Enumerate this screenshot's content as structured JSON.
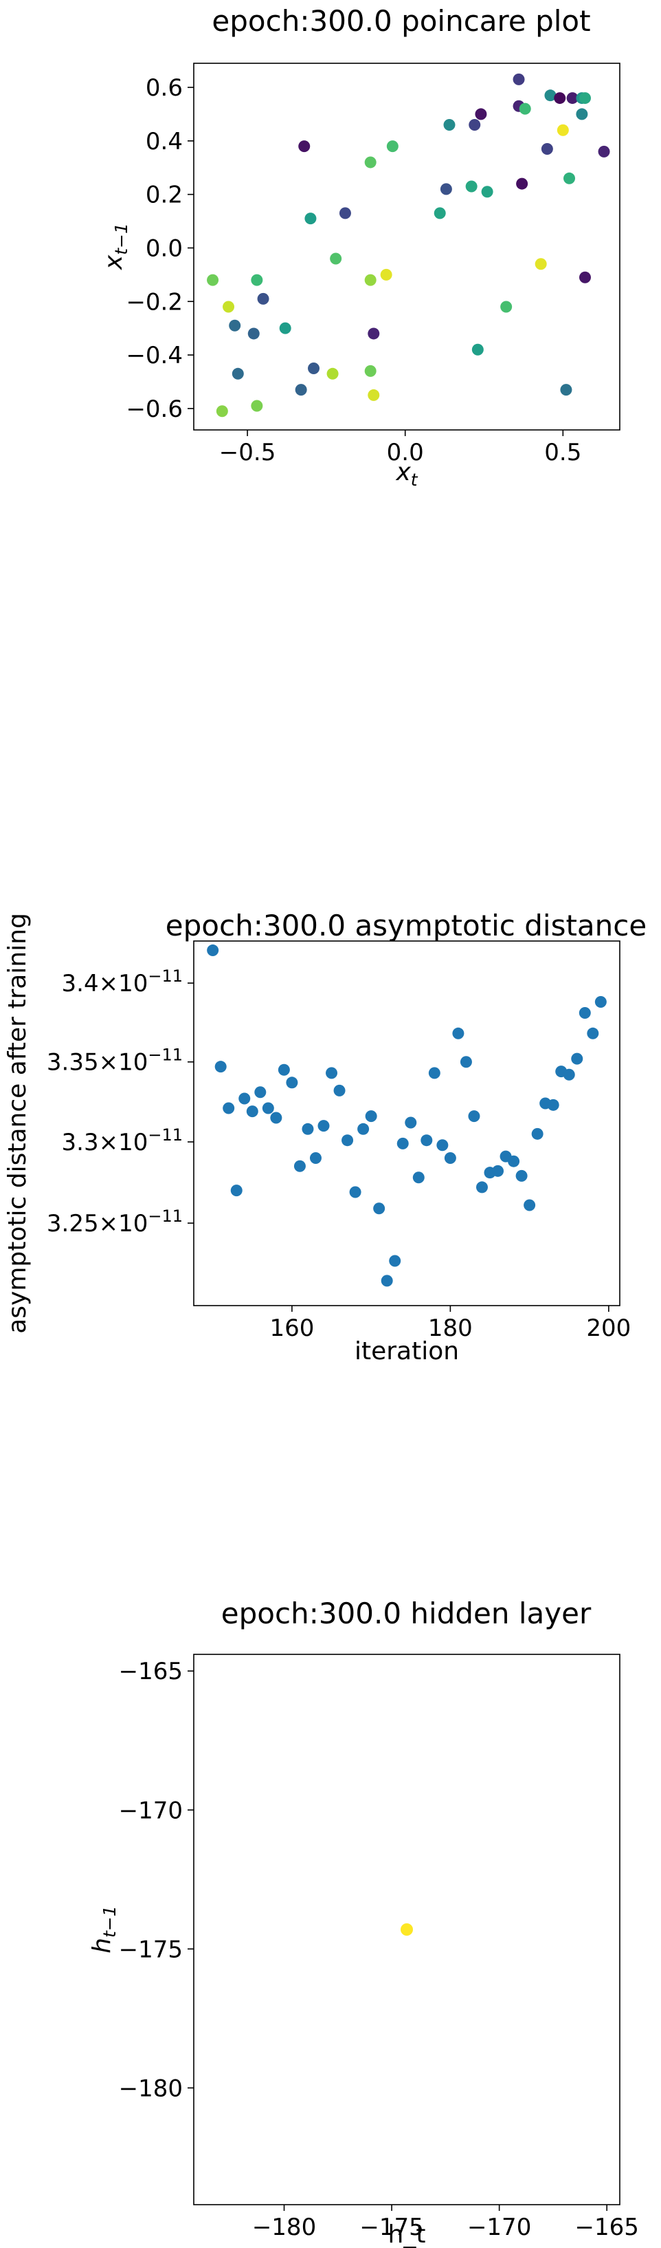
{
  "chart_data": [
    {
      "type": "scatter",
      "title": "epoch:300.0 poincare plot",
      "xlabel": "x_t",
      "ylabel": "x_{t-1}",
      "xlim": [
        -0.67,
        0.68
      ],
      "ylim": [
        -0.68,
        0.69
      ],
      "xticks": [
        -0.5,
        0.0,
        0.5
      ],
      "xtick_labels": [
        "−0.5",
        "0.0",
        "0.5"
      ],
      "yticks": [
        -0.6,
        -0.4,
        -0.2,
        0.0,
        0.2,
        0.4,
        0.6
      ],
      "ytick_labels": [
        "−0.6",
        "−0.4",
        "−0.2",
        "0.0",
        "0.2",
        "0.4",
        "0.6"
      ],
      "grid": false,
      "colormap": "viridis",
      "points": [
        {
          "x": -0.61,
          "y": -0.12,
          "c": 0.78
        },
        {
          "x": -0.58,
          "y": -0.61,
          "c": 0.82
        },
        {
          "x": -0.56,
          "y": -0.22,
          "c": 0.92
        },
        {
          "x": -0.54,
          "y": -0.29,
          "c": 0.35
        },
        {
          "x": -0.53,
          "y": -0.47,
          "c": 0.35
        },
        {
          "x": -0.48,
          "y": -0.32,
          "c": 0.32
        },
        {
          "x": -0.47,
          "y": -0.12,
          "c": 0.68
        },
        {
          "x": -0.47,
          "y": -0.59,
          "c": 0.8
        },
        {
          "x": -0.45,
          "y": -0.19,
          "c": 0.25
        },
        {
          "x": -0.38,
          "y": -0.3,
          "c": 0.55
        },
        {
          "x": -0.33,
          "y": -0.53,
          "c": 0.32
        },
        {
          "x": -0.32,
          "y": 0.38,
          "c": 0.05
        },
        {
          "x": -0.3,
          "y": 0.11,
          "c": 0.55
        },
        {
          "x": -0.29,
          "y": -0.45,
          "c": 0.28
        },
        {
          "x": -0.23,
          "y": -0.47,
          "c": 0.88
        },
        {
          "x": -0.22,
          "y": -0.04,
          "c": 0.72
        },
        {
          "x": -0.19,
          "y": 0.13,
          "c": 0.22
        },
        {
          "x": -0.11,
          "y": 0.32,
          "c": 0.74
        },
        {
          "x": -0.11,
          "y": -0.12,
          "c": 0.84
        },
        {
          "x": -0.11,
          "y": -0.46,
          "c": 0.78
        },
        {
          "x": -0.1,
          "y": -0.32,
          "c": 0.1
        },
        {
          "x": -0.1,
          "y": -0.55,
          "c": 0.94
        },
        {
          "x": -0.06,
          "y": -0.1,
          "c": 0.96
        },
        {
          "x": -0.04,
          "y": 0.38,
          "c": 0.7
        },
        {
          "x": 0.11,
          "y": 0.13,
          "c": 0.58
        },
        {
          "x": 0.13,
          "y": 0.22,
          "c": 0.25
        },
        {
          "x": 0.14,
          "y": 0.46,
          "c": 0.48
        },
        {
          "x": 0.21,
          "y": 0.23,
          "c": 0.6
        },
        {
          "x": 0.22,
          "y": 0.46,
          "c": 0.2
        },
        {
          "x": 0.23,
          "y": -0.38,
          "c": 0.56
        },
        {
          "x": 0.24,
          "y": 0.5,
          "c": 0.05
        },
        {
          "x": 0.26,
          "y": 0.21,
          "c": 0.58
        },
        {
          "x": 0.32,
          "y": -0.22,
          "c": 0.7
        },
        {
          "x": 0.36,
          "y": 0.53,
          "c": 0.1
        },
        {
          "x": 0.36,
          "y": 0.63,
          "c": 0.18
        },
        {
          "x": 0.37,
          "y": 0.24,
          "c": 0.04
        },
        {
          "x": 0.38,
          "y": 0.52,
          "c": 0.68
        },
        {
          "x": 0.43,
          "y": -0.06,
          "c": 0.96
        },
        {
          "x": 0.45,
          "y": 0.37,
          "c": 0.2
        },
        {
          "x": 0.46,
          "y": 0.57,
          "c": 0.48
        },
        {
          "x": 0.49,
          "y": 0.56,
          "c": 0.02
        },
        {
          "x": 0.5,
          "y": 0.44,
          "c": 0.98
        },
        {
          "x": 0.51,
          "y": -0.53,
          "c": 0.38
        },
        {
          "x": 0.52,
          "y": 0.26,
          "c": 0.64
        },
        {
          "x": 0.53,
          "y": 0.56,
          "c": 0.08
        },
        {
          "x": 0.56,
          "y": 0.56,
          "c": 0.52
        },
        {
          "x": 0.56,
          "y": 0.5,
          "c": 0.46
        },
        {
          "x": 0.57,
          "y": 0.56,
          "c": 0.6
        },
        {
          "x": 0.57,
          "y": -0.11,
          "c": 0.06
        },
        {
          "x": 0.63,
          "y": 0.36,
          "c": 0.1
        }
      ]
    },
    {
      "type": "scatter",
      "title": "epoch:300.0 asymptotic distance",
      "xlabel": "iteration",
      "ylabel": "asymptotic distance after training",
      "yscale": "log",
      "xlim": [
        147.6,
        201.4
      ],
      "ylim": [
        3.2e-11,
        3.427e-11
      ],
      "xticks": [
        160,
        180,
        200
      ],
      "xtick_labels": [
        "160",
        "180",
        "200"
      ],
      "yticks": [
        3.25e-11,
        3.3e-11,
        3.35e-11,
        3.4e-11
      ],
      "ytick_mantissas": [
        "3.25",
        "3.3",
        "3.35",
        "3.4"
      ],
      "ytick_base": "10",
      "ytick_exponent": "−11",
      "grid": false,
      "color": "#1f77b4",
      "x": [
        150,
        151,
        152,
        153,
        154,
        155,
        156,
        157,
        158,
        159,
        160,
        161,
        162,
        163,
        164,
        165,
        166,
        167,
        168,
        169,
        170,
        171,
        172,
        173,
        174,
        175,
        176,
        177,
        178,
        179,
        180,
        181,
        182,
        183,
        184,
        185,
        186,
        187,
        188,
        189,
        190,
        191,
        192,
        193,
        194,
        195,
        196,
        197,
        198,
        199
      ],
      "y": [
        3.421e-11,
        3.347e-11,
        3.321e-11,
        3.27e-11,
        3.327e-11,
        3.319e-11,
        3.331e-11,
        3.321e-11,
        3.315e-11,
        3.345e-11,
        3.337e-11,
        3.285e-11,
        3.308e-11,
        3.29e-11,
        3.31e-11,
        3.343e-11,
        3.332e-11,
        3.301e-11,
        3.269e-11,
        3.308e-11,
        3.316e-11,
        3.259e-11,
        3.215e-11,
        3.227e-11,
        3.299e-11,
        3.312e-11,
        3.278e-11,
        3.301e-11,
        3.343e-11,
        3.298e-11,
        3.29e-11,
        3.368e-11,
        3.35e-11,
        3.316e-11,
        3.272e-11,
        3.281e-11,
        3.282e-11,
        3.291e-11,
        3.288e-11,
        3.279e-11,
        3.261e-11,
        3.305e-11,
        3.324e-11,
        3.323e-11,
        3.344e-11,
        3.342e-11,
        3.352e-11,
        3.381e-11,
        3.368e-11,
        3.388e-11
      ]
    },
    {
      "type": "scatter",
      "title": "epoch:300.0 hidden layer",
      "xlabel": "h_t",
      "ylabel": "h_{t-1}",
      "xlim": [
        -184.2,
        -164.4
      ],
      "ylim": [
        -184.2,
        -164.4
      ],
      "xticks": [
        -180,
        -175,
        -170,
        -165
      ],
      "xtick_labels": [
        "−180",
        "−175",
        "−170",
        "−165"
      ],
      "yticks": [
        -165,
        -170,
        -175,
        -180
      ],
      "ytick_labels": [
        "−165",
        "−170",
        "−175",
        "−180"
      ],
      "grid": false,
      "color": "#fde725",
      "points": [
        {
          "x": -174.3,
          "y": -174.3
        }
      ]
    }
  ]
}
